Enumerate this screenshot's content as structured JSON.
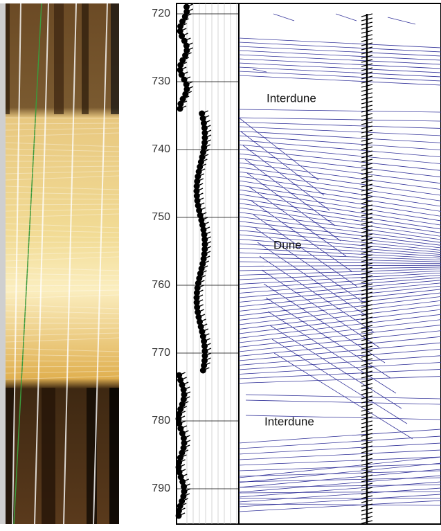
{
  "depth_track": {
    "ticks": [
      720,
      730,
      740,
      750,
      760,
      770,
      780,
      790
    ]
  },
  "zones": [
    {
      "label": "Interdune"
    },
    {
      "label": "Dune"
    },
    {
      "label": "Interdune"
    }
  ]
}
